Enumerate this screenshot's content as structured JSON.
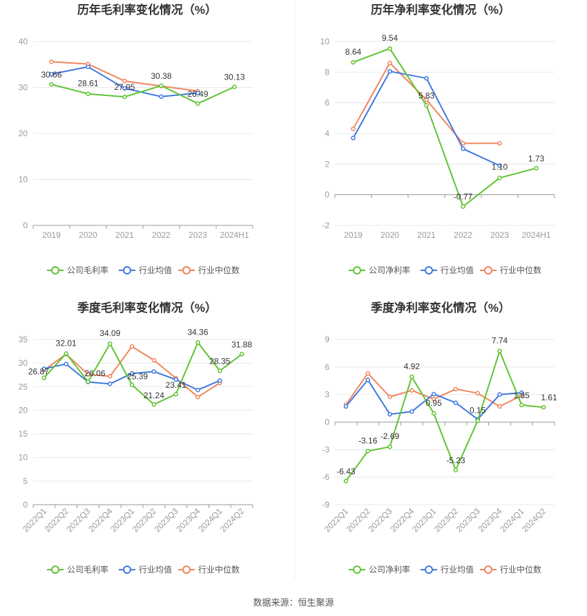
{
  "footer": {
    "source": "数据来源：恒生聚源"
  },
  "legend_labels": {
    "gross": [
      "公司毛利率",
      "行业均值",
      "行业中位数"
    ],
    "net": [
      "公司净利率",
      "行业均值",
      "行业中位数"
    ]
  },
  "colors": {
    "company": "#5fc332",
    "mean": "#3f78e0",
    "median": "#f0845d",
    "grid": "#e8e8e8",
    "axis": "#999999"
  },
  "chart_data": [
    {
      "type": "line",
      "title": "历年毛利率变化情况（%）",
      "categories": [
        "2019",
        "2020",
        "2021",
        "2022",
        "2023",
        "2024H1"
      ],
      "ylim": [
        0,
        40
      ],
      "yticks": [
        0,
        10,
        20,
        30,
        40
      ],
      "legend_position": "bottom",
      "series": [
        {
          "name": "公司毛利率",
          "values": [
            30.66,
            28.61,
            27.95,
            30.38,
            26.49,
            30.13
          ],
          "labels": [
            "30.66",
            "28.61",
            "27.95",
            "30.38",
            "26.49",
            "30.13"
          ]
        },
        {
          "name": "行业均值",
          "values": [
            32.9,
            34.5,
            29.8,
            28.0,
            28.8,
            null
          ]
        },
        {
          "name": "行业中位数",
          "values": [
            35.6,
            35.1,
            31.4,
            30.3,
            29.2,
            null
          ]
        }
      ]
    },
    {
      "type": "line",
      "title": "历年净利率变化情况（%）",
      "categories": [
        "2019",
        "2020",
        "2021",
        "2022",
        "2023",
        "2024H1"
      ],
      "ylim": [
        -2,
        10
      ],
      "yticks": [
        -2,
        0,
        2,
        4,
        6,
        8,
        10
      ],
      "legend_position": "bottom",
      "series": [
        {
          "name": "公司净利率",
          "values": [
            8.64,
            9.54,
            5.83,
            -0.77,
            1.1,
            1.73
          ],
          "labels": [
            "8.64",
            "9.54",
            "5.83",
            "-0.77",
            "1.10",
            "1.73"
          ]
        },
        {
          "name": "行业均值",
          "values": [
            3.7,
            8.05,
            7.6,
            3.0,
            1.9,
            null
          ]
        },
        {
          "name": "行业中位数",
          "values": [
            4.3,
            8.6,
            6.2,
            3.35,
            3.36,
            null
          ]
        }
      ]
    },
    {
      "type": "line",
      "title": "季度毛利率变化情况（%）",
      "categories": [
        "2022Q1",
        "2022Q2",
        "2022Q3",
        "2022Q4",
        "2023Q1",
        "2023Q2",
        "2023Q3",
        "2023Q4",
        "2024Q1",
        "2024Q2"
      ],
      "ylim": [
        0,
        35
      ],
      "yticks": [
        0,
        5,
        10,
        15,
        20,
        25,
        30,
        35
      ],
      "legend_position": "bottom",
      "series": [
        {
          "name": "公司毛利率",
          "values": [
            26.87,
            32.01,
            26.06,
            34.09,
            25.39,
            21.24,
            23.41,
            34.36,
            28.35,
            31.88
          ],
          "labels": [
            "26.87",
            "32.01",
            "26.06",
            "34.09",
            "25.39",
            "21.24",
            "23.41",
            "34.36",
            "28.35",
            "31.88"
          ]
        },
        {
          "name": "行业均值",
          "values": [
            28.8,
            29.8,
            26.0,
            25.6,
            27.8,
            28.2,
            26.5,
            24.3,
            26.3,
            null
          ]
        },
        {
          "name": "行业中位数",
          "values": [
            28.5,
            31.9,
            27.6,
            27.2,
            33.5,
            30.6,
            26.8,
            22.8,
            25.8,
            null
          ]
        }
      ]
    },
    {
      "type": "line",
      "title": "季度净利率变化情况（%）",
      "categories": [
        "2022Q1",
        "2022Q2",
        "2022Q3",
        "2022Q4",
        "2023Q1",
        "2023Q2",
        "2023Q3",
        "2023Q4",
        "2024Q1",
        "2024Q2"
      ],
      "ylim": [
        -9,
        9
      ],
      "yticks": [
        -9,
        -6,
        -3,
        0,
        3,
        6,
        9
      ],
      "legend_position": "bottom",
      "series": [
        {
          "name": "公司净利率",
          "values": [
            -6.43,
            -3.16,
            -2.69,
            4.92,
            0.95,
            -5.23,
            0.15,
            7.74,
            1.85,
            1.61
          ],
          "labels": [
            "-6.43",
            "-3.16",
            "-2.69",
            "4.92",
            "0.95",
            "-5.23",
            "0.15",
            "7.74",
            "1.85",
            "1.61"
          ]
        },
        {
          "name": "行业均值",
          "values": [
            1.7,
            4.6,
            0.85,
            1.15,
            3.05,
            2.1,
            0.3,
            3.0,
            3.2,
            null
          ]
        },
        {
          "name": "行业中位数",
          "values": [
            1.9,
            5.3,
            2.75,
            3.45,
            2.5,
            3.6,
            3.15,
            1.7,
            2.9,
            null
          ]
        }
      ]
    }
  ]
}
